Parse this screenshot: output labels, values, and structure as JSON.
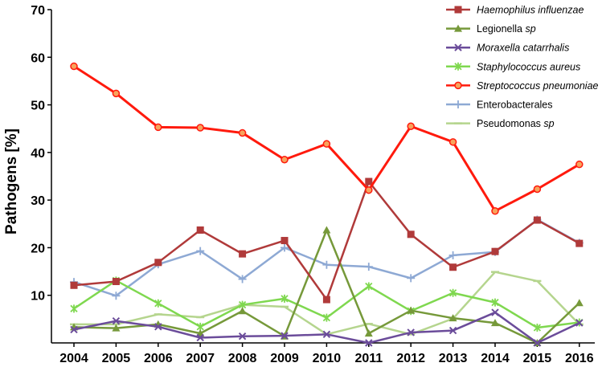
{
  "chart_data": {
    "type": "line",
    "title": "",
    "xlabel": "",
    "ylabel": "Pathogens [%]",
    "ylim": [
      0,
      70
    ],
    "yticks": [
      10,
      20,
      30,
      40,
      50,
      60,
      70
    ],
    "x": [
      2004,
      2005,
      2006,
      2007,
      2008,
      2009,
      2010,
      2011,
      2012,
      2013,
      2014,
      2015,
      2016
    ],
    "grid": false,
    "legend_position": "top-right",
    "series": [
      {
        "name": "Haemophilus influenzae",
        "italic": true,
        "color": "#b03a3a",
        "marker": "square",
        "values": [
          12.1,
          12.9,
          16.9,
          23.7,
          18.7,
          21.5,
          9.1,
          33.9,
          22.8,
          15.9,
          19.2,
          25.8,
          20.9
        ]
      },
      {
        "name": "Legionella sp",
        "italic_part": "sp",
        "color": "#76993a",
        "marker": "triangle",
        "values": [
          3.3,
          3.1,
          3.9,
          2.0,
          6.7,
          1.4,
          23.7,
          2.0,
          6.8,
          5.2,
          4.2,
          0.0,
          8.4
        ]
      },
      {
        "name": "Moraxella catarrhalis",
        "italic": true,
        "color": "#6b4c9a",
        "marker": "x",
        "values": [
          2.8,
          4.6,
          3.4,
          1.1,
          1.4,
          1.5,
          1.8,
          0.0,
          2.2,
          2.6,
          6.4,
          0.0,
          4.2
        ]
      },
      {
        "name": "Staphylococcus aureus",
        "italic": true,
        "color": "#7fd84f",
        "marker": "asterisk",
        "values": [
          7.2,
          13.1,
          8.3,
          3.4,
          8.0,
          9.3,
          5.3,
          11.9,
          6.7,
          10.5,
          8.5,
          3.2,
          4.3
        ]
      },
      {
        "name": "Streptococcus pneumoniae",
        "italic": true,
        "color": "#ff1a0d",
        "marker": "circle",
        "values": [
          58.1,
          52.4,
          45.3,
          45.2,
          44.1,
          38.5,
          41.8,
          32.1,
          45.5,
          42.2,
          27.7,
          32.3,
          37.5
        ]
      },
      {
        "name": "Enterobacterales",
        "color": "#8ea9d4",
        "marker": "plus",
        "values": [
          12.8,
          9.9,
          16.5,
          19.3,
          13.4,
          20.0,
          16.4,
          16.0,
          13.6,
          18.4,
          19.1,
          25.9,
          21.0
        ]
      },
      {
        "name": "Pseudomonas sp",
        "italic_part": "sp",
        "color": "#b5d58e",
        "marker": "dash",
        "values": [
          3.9,
          3.9,
          6.0,
          5.4,
          8.0,
          7.6,
          1.8,
          4.0,
          1.8,
          5.1,
          14.9,
          13.0,
          3.9
        ]
      }
    ]
  }
}
